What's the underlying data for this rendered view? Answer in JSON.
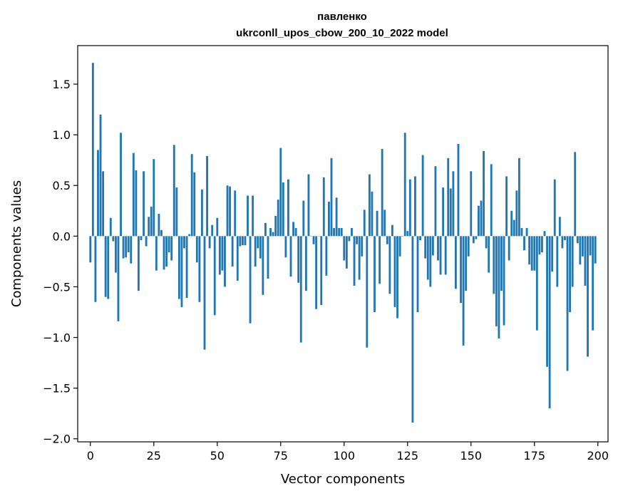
{
  "chart_data": {
    "type": "bar",
    "title": "павленко",
    "subtitle": "ukrconll_upos_cbow_200_10_2022 model",
    "xlabel": "Vector components",
    "ylabel": "Components values",
    "xlim": [
      -5,
      204
    ],
    "ylim": [
      -2.03,
      1.88
    ],
    "xticks": [
      0,
      25,
      50,
      75,
      100,
      125,
      150,
      175,
      200
    ],
    "xtick_labels": [
      "0",
      "25",
      "50",
      "75",
      "100",
      "125",
      "150",
      "175",
      "200"
    ],
    "yticks": [
      -2.0,
      -1.5,
      -1.0,
      -0.5,
      0.0,
      0.5,
      1.0,
      1.5
    ],
    "ytick_labels": [
      "−2.0",
      "−1.5",
      "−1.0",
      "−0.5",
      "0.0",
      "0.5",
      "1.0",
      "1.5"
    ],
    "grid": false,
    "color": "#1f77b4",
    "x_start": 0,
    "values": [
      -0.26,
      1.71,
      -0.65,
      0.85,
      1.2,
      0.64,
      -0.6,
      -0.62,
      0.18,
      -0.05,
      -0.36,
      -0.84,
      1.02,
      -0.22,
      -0.21,
      -0.16,
      -0.27,
      0.82,
      0.65,
      -0.54,
      -0.04,
      0.64,
      -0.1,
      0.19,
      0.29,
      0.76,
      -0.34,
      0.22,
      0.06,
      -0.33,
      -0.3,
      -0.16,
      -0.24,
      0.9,
      0.48,
      -0.62,
      -0.7,
      -0.12,
      -0.61,
      0.02,
      0.81,
      0.63,
      -0.26,
      -0.65,
      0.46,
      -1.12,
      0.79,
      -0.12,
      0.11,
      -0.78,
      0.18,
      -0.38,
      -0.34,
      -0.5,
      0.5,
      0.49,
      -0.3,
      0.45,
      -0.44,
      -0.1,
      -0.09,
      -0.09,
      0.4,
      -0.86,
      0.4,
      -0.3,
      -0.12,
      -0.22,
      -0.58,
      0.13,
      -0.42,
      0.08,
      0.04,
      0.2,
      0.36,
      0.87,
      0.53,
      -0.21,
      0.56,
      -0.4,
      0.14,
      0.08,
      -0.46,
      -1.05,
      0.35,
      -0.54,
      0.61,
      0.0,
      -0.08,
      -0.72,
      0.0,
      -0.68,
      0.58,
      -0.39,
      0.34,
      0.77,
      0.08,
      0.38,
      0.08,
      0.08,
      -0.24,
      -0.32,
      -0.05,
      0.08,
      -0.49,
      -0.08,
      -0.43,
      -0.2,
      0.26,
      -1.1,
      0.61,
      0.44,
      -0.75,
      0.25,
      -0.47,
      0.86,
      0.26,
      -0.08,
      -0.57,
      0.11,
      -0.7,
      -0.81,
      -0.2,
      0.0,
      1.02,
      0.05,
      0.56,
      -1.84,
      0.59,
      -0.75,
      -0.04,
      0.8,
      -0.22,
      -0.43,
      -0.5,
      -0.19,
      0.69,
      -0.24,
      -0.38,
      0.48,
      -0.38,
      0.77,
      0.47,
      0.64,
      -0.52,
      0.91,
      -0.66,
      -1.08,
      -0.54,
      -0.2,
      0.64,
      -0.07,
      -0.03,
      0.3,
      0.35,
      0.84,
      -0.12,
      -0.36,
      0.71,
      -0.57,
      -0.89,
      -1.01,
      -0.54,
      -0.88,
      0.59,
      -0.24,
      0.25,
      0.16,
      0.45,
      0.77,
      0.08,
      -0.14,
      0.08,
      -0.28,
      -0.34,
      -0.34,
      -0.93,
      -0.18,
      -0.16,
      0.05,
      -1.29,
      -1.7,
      -0.35,
      0.56,
      -0.5,
      0.19,
      -0.12,
      -0.04,
      -1.33,
      -0.75,
      -0.5,
      0.83,
      -0.07,
      -0.28,
      -0.2,
      -0.49,
      -1.19,
      -0.19,
      -0.93,
      -0.27
    ]
  }
}
